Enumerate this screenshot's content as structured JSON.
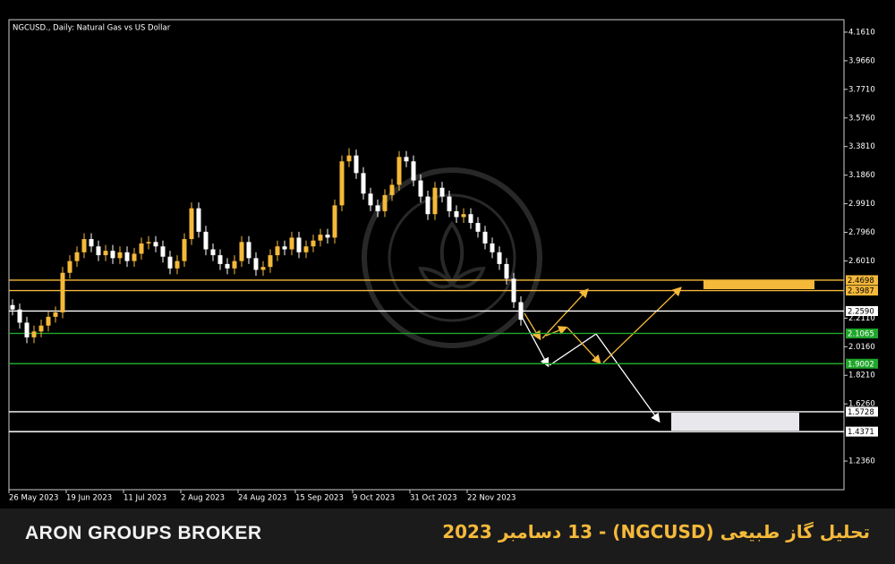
{
  "chart_data": {
    "type": "candlestick",
    "title": "NGCUSD., Daily:  Natural Gas vs  US Dollar",
    "up_color": "#f5b93a",
    "down_color": "#ffffff",
    "candles": [
      [
        2.3,
        2.34,
        2.23,
        2.27
      ],
      [
        2.27,
        2.31,
        2.14,
        2.18
      ],
      [
        2.18,
        2.22,
        2.04,
        2.08
      ],
      [
        2.08,
        2.16,
        2.04,
        2.12
      ],
      [
        2.12,
        2.2,
        2.08,
        2.16
      ],
      [
        2.16,
        2.26,
        2.12,
        2.22
      ],
      [
        2.22,
        2.29,
        2.18,
        2.25
      ],
      [
        2.25,
        2.56,
        2.21,
        2.52
      ],
      [
        2.52,
        2.64,
        2.48,
        2.6
      ],
      [
        2.6,
        2.7,
        2.56,
        2.66
      ],
      [
        2.66,
        2.79,
        2.62,
        2.75
      ],
      [
        2.75,
        2.79,
        2.66,
        2.7
      ],
      [
        2.7,
        2.74,
        2.6,
        2.64
      ],
      [
        2.64,
        2.71,
        2.6,
        2.67
      ],
      [
        2.67,
        2.71,
        2.58,
        2.62
      ],
      [
        2.62,
        2.7,
        2.58,
        2.66
      ],
      [
        2.66,
        2.7,
        2.56,
        2.6
      ],
      [
        2.6,
        2.69,
        2.56,
        2.65
      ],
      [
        2.65,
        2.76,
        2.61,
        2.72
      ],
      [
        2.72,
        2.77,
        2.68,
        2.73
      ],
      [
        2.73,
        2.77,
        2.66,
        2.7
      ],
      [
        2.7,
        2.74,
        2.59,
        2.63
      ],
      [
        2.63,
        2.67,
        2.51,
        2.55
      ],
      [
        2.55,
        2.64,
        2.51,
        2.6
      ],
      [
        2.6,
        2.79,
        2.56,
        2.75
      ],
      [
        2.75,
        3.0,
        2.71,
        2.96
      ],
      [
        2.96,
        3.0,
        2.76,
        2.8
      ],
      [
        2.8,
        2.84,
        2.64,
        2.68
      ],
      [
        2.68,
        2.72,
        2.6,
        2.64
      ],
      [
        2.64,
        2.68,
        2.54,
        2.58
      ],
      [
        2.58,
        2.62,
        2.51,
        2.55
      ],
      [
        2.55,
        2.64,
        2.51,
        2.6
      ],
      [
        2.6,
        2.77,
        2.56,
        2.73
      ],
      [
        2.73,
        2.77,
        2.58,
        2.62
      ],
      [
        2.62,
        2.66,
        2.5,
        2.54
      ],
      [
        2.54,
        2.6,
        2.5,
        2.56
      ],
      [
        2.56,
        2.68,
        2.52,
        2.64
      ],
      [
        2.64,
        2.74,
        2.6,
        2.7
      ],
      [
        2.7,
        2.74,
        2.64,
        2.68
      ],
      [
        2.68,
        2.8,
        2.64,
        2.76
      ],
      [
        2.76,
        2.8,
        2.62,
        2.66
      ],
      [
        2.66,
        2.74,
        2.62,
        2.7
      ],
      [
        2.7,
        2.78,
        2.66,
        2.74
      ],
      [
        2.74,
        2.82,
        2.7,
        2.78
      ],
      [
        2.78,
        2.82,
        2.72,
        2.76
      ],
      [
        2.76,
        3.02,
        2.72,
        2.98
      ],
      [
        2.98,
        3.32,
        2.94,
        3.28
      ],
      [
        3.28,
        3.37,
        3.24,
        3.32
      ],
      [
        3.32,
        3.36,
        3.16,
        3.2
      ],
      [
        3.2,
        3.24,
        3.02,
        3.06
      ],
      [
        3.06,
        3.1,
        2.94,
        2.98
      ],
      [
        2.98,
        3.02,
        2.9,
        2.94
      ],
      [
        2.94,
        3.09,
        2.9,
        3.05
      ],
      [
        3.05,
        3.16,
        3.01,
        3.12
      ],
      [
        3.12,
        3.35,
        3.08,
        3.31
      ],
      [
        3.31,
        3.35,
        3.24,
        3.28
      ],
      [
        3.28,
        3.32,
        3.11,
        3.15
      ],
      [
        3.15,
        3.19,
        3.0,
        3.04
      ],
      [
        3.04,
        3.08,
        2.88,
        2.92
      ],
      [
        2.92,
        3.14,
        2.88,
        3.1
      ],
      [
        3.1,
        3.14,
        3.0,
        3.04
      ],
      [
        3.04,
        3.08,
        2.9,
        2.94
      ],
      [
        2.94,
        2.98,
        2.86,
        2.9
      ],
      [
        2.9,
        2.96,
        2.86,
        2.92
      ],
      [
        2.92,
        2.96,
        2.82,
        2.86
      ],
      [
        2.86,
        2.9,
        2.76,
        2.8
      ],
      [
        2.8,
        2.84,
        2.68,
        2.72
      ],
      [
        2.72,
        2.76,
        2.62,
        2.66
      ],
      [
        2.66,
        2.7,
        2.54,
        2.58
      ],
      [
        2.58,
        2.62,
        2.44,
        2.48
      ],
      [
        2.48,
        2.52,
        2.28,
        2.32
      ],
      [
        2.32,
        2.36,
        2.16,
        2.2
      ]
    ],
    "xticks": [
      {
        "value": 0,
        "label": "26 May 2023"
      },
      {
        "value": 8,
        "label": "19 Jun 2023"
      },
      {
        "value": 16,
        "label": "11 Jul 2023"
      },
      {
        "value": 24,
        "label": "2 Aug 2023"
      },
      {
        "value": 32,
        "label": "24 Aug 2023"
      },
      {
        "value": 40,
        "label": "15 Sep 2023"
      },
      {
        "value": 48,
        "label": "9 Oct 2023"
      },
      {
        "value": 56,
        "label": "31 Oct 2023"
      },
      {
        "value": 64,
        "label": "22 Nov 2023"
      }
    ],
    "ylim": [
      1.041,
      4.246
    ],
    "yticks": [
      {
        "value": 4.161,
        "label": "4.1610"
      },
      {
        "value": 3.966,
        "label": "3.9660"
      },
      {
        "value": 3.771,
        "label": "3.7710"
      },
      {
        "value": 3.576,
        "label": "3.5760"
      },
      {
        "value": 3.381,
        "label": "3.3810"
      },
      {
        "value": 3.186,
        "label": "3.1860"
      },
      {
        "value": 2.991,
        "label": "2.9910"
      },
      {
        "value": 2.796,
        "label": "2.7960"
      },
      {
        "value": 2.601,
        "label": "2.6010"
      },
      {
        "value": 2.211,
        "label": "2.2110"
      },
      {
        "value": 2.016,
        "label": "2.0160"
      },
      {
        "value": 1.821,
        "label": "1.8210"
      },
      {
        "value": 1.626,
        "label": "1.6260"
      },
      {
        "value": 1.236,
        "label": "1.2360"
      }
    ],
    "levels": [
      {
        "value": 2.4698,
        "color": "#f5b93a"
      },
      {
        "value": 2.3987,
        "color": "#f5b93a"
      },
      {
        "value": 2.259,
        "label": "2.2590",
        "color": "#ffffff"
      },
      {
        "value": 2.1065,
        "color": "#1fa62b"
      },
      {
        "value": 1.9002,
        "color": "#1fa62b"
      },
      {
        "value": 1.5728,
        "color": "#ffffff"
      },
      {
        "value": 1.4371,
        "color": "#ffffff"
      }
    ]
  },
  "footer": {
    "brand": "ARON GROUPS BROKER",
    "title": "تحلیل  گاز طبیعی (NGCUSD) - 13 دسامبر 2023"
  }
}
